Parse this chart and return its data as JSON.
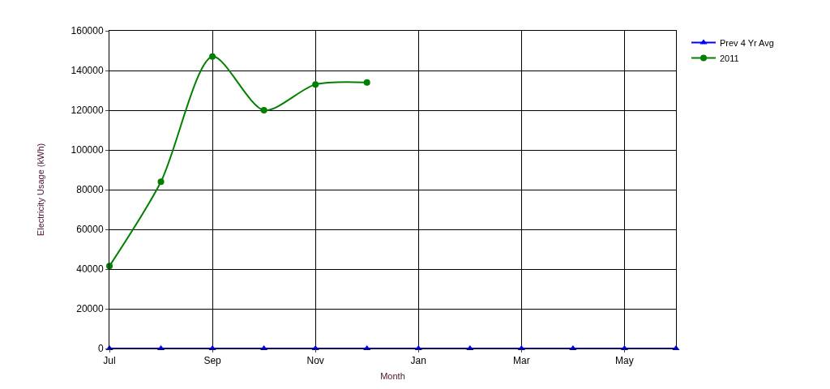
{
  "chart_data": {
    "type": "line",
    "xlabel": "Month",
    "ylabel": "Electricity Usage (kWh)",
    "categories": [
      "Jul",
      null,
      "Sep",
      null,
      "Nov",
      null,
      "Jan",
      null,
      "Mar",
      null,
      "May",
      null
    ],
    "series": [
      {
        "name": "Prev 4 Yr Avg",
        "color": "#0000ff",
        "marker": "triangle",
        "values": [
          0,
          0,
          0,
          0,
          0,
          0,
          0,
          0,
          0,
          0,
          0,
          0
        ]
      },
      {
        "name": "2011",
        "color": "#008000",
        "marker": "circle",
        "values": [
          41500,
          84000,
          147000,
          120000,
          133000,
          134000,
          null,
          null,
          null,
          null,
          null,
          null
        ]
      }
    ],
    "ylim": [
      0,
      160000
    ],
    "yticks": [
      0,
      20000,
      40000,
      60000,
      80000,
      100000,
      120000,
      140000,
      160000
    ],
    "grid": true,
    "legend": "top right",
    "line_style": "solid"
  }
}
